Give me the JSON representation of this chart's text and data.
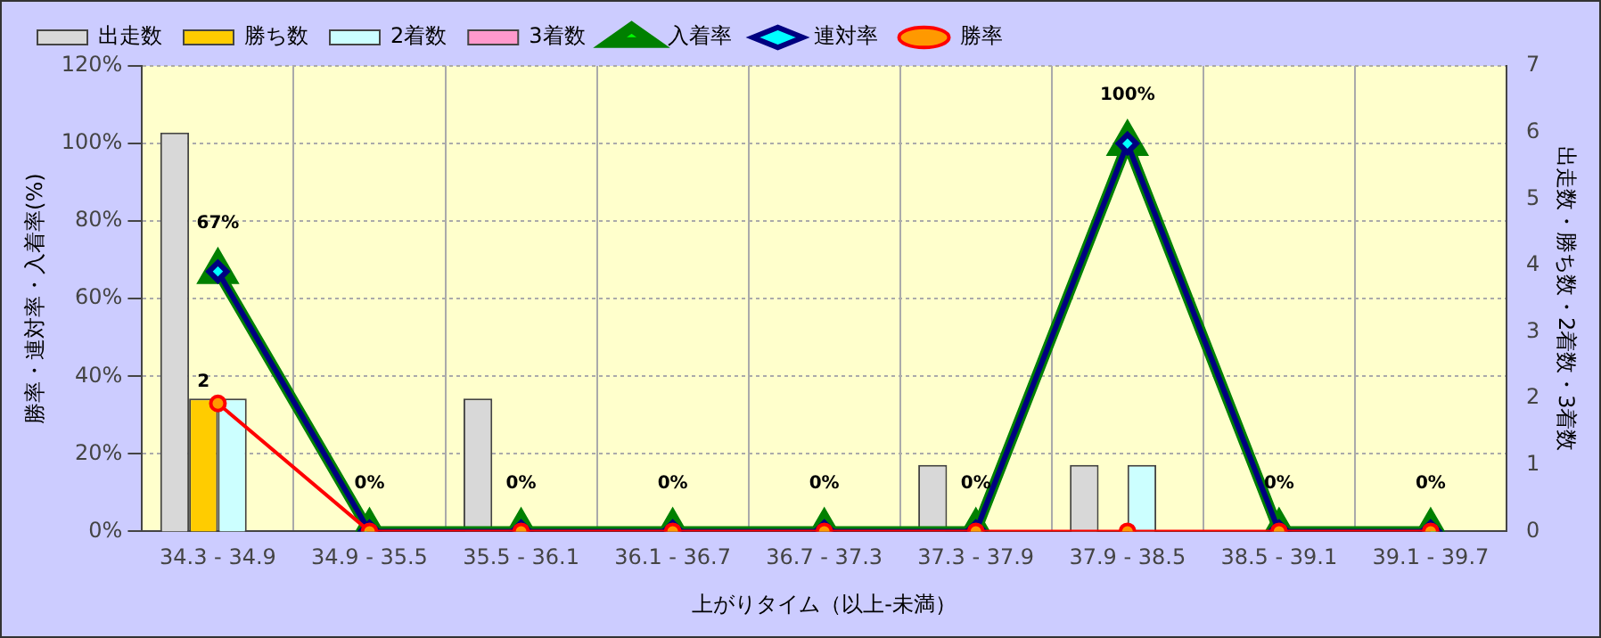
{
  "chart_data": {
    "type": "bar",
    "categories": [
      "34.3 - 34.9",
      "34.9 - 35.5",
      "35.5 - 36.1",
      "36.1 - 36.7",
      "36.7 - 37.3",
      "37.3 - 37.9",
      "37.9 - 38.5",
      "38.5 - 39.1",
      "39.1 - 39.7"
    ],
    "xlabel": "上がりタイム（以上-未満）",
    "ylabel": "勝率・連対率・入着率(%)",
    "y2label": "出走数・勝ち数・2着数・3着数",
    "series": [
      {
        "name": "出走数",
        "axis": "y2",
        "color": "#d8d8d8",
        "values": [
          6,
          0,
          2,
          0,
          0,
          1,
          1,
          0,
          0
        ]
      },
      {
        "name": "勝ち数",
        "axis": "y2",
        "color": "#ffcc00",
        "values": [
          2,
          0,
          0,
          0,
          0,
          0,
          0,
          0,
          0
        ],
        "value_labels": [
          "2",
          null,
          null,
          null,
          null,
          null,
          null,
          null,
          null
        ]
      },
      {
        "name": "2着数",
        "axis": "y2",
        "color": "#ccffff",
        "values": [
          2,
          0,
          0,
          0,
          0,
          0,
          1,
          0,
          0
        ]
      },
      {
        "name": "3着数",
        "axis": "y2",
        "color": "#ff99cc",
        "values": [
          0,
          0,
          0,
          0,
          0,
          0,
          0,
          0,
          0
        ]
      },
      {
        "name": "入着率",
        "type": "line",
        "color": "#008000",
        "marker": "triangle",
        "values": [
          67,
          0,
          0,
          0,
          0,
          0,
          100,
          0,
          0
        ]
      },
      {
        "name": "連対率",
        "type": "line",
        "color": "#000080",
        "marker": "diamond",
        "values": [
          67,
          0,
          0,
          0,
          0,
          0,
          100,
          0,
          0
        ],
        "value_labels": [
          "67%",
          "0%",
          "0%",
          "0%",
          "0%",
          "0%",
          "100%",
          "0%",
          "0%"
        ]
      },
      {
        "name": "勝率",
        "type": "line",
        "color": "#ff0000",
        "marker": "circle",
        "values": [
          33,
          0,
          0,
          0,
          0,
          0,
          0,
          0,
          0
        ]
      }
    ],
    "ylim": [
      0,
      120
    ],
    "yticks": [
      {
        "value": 0,
        "label": "0%"
      },
      {
        "value": 20,
        "label": "20%"
      },
      {
        "value": 40,
        "label": "40%"
      },
      {
        "value": 60,
        "label": "60%"
      },
      {
        "value": 80,
        "label": "80%"
      },
      {
        "value": 100,
        "label": "100%"
      },
      {
        "value": 120,
        "label": "120%"
      }
    ],
    "y2lim": [
      0,
      7
    ],
    "y2ticks": [
      0,
      1,
      2,
      3,
      4,
      5,
      6,
      7
    ],
    "grid": true,
    "legend": "top"
  }
}
